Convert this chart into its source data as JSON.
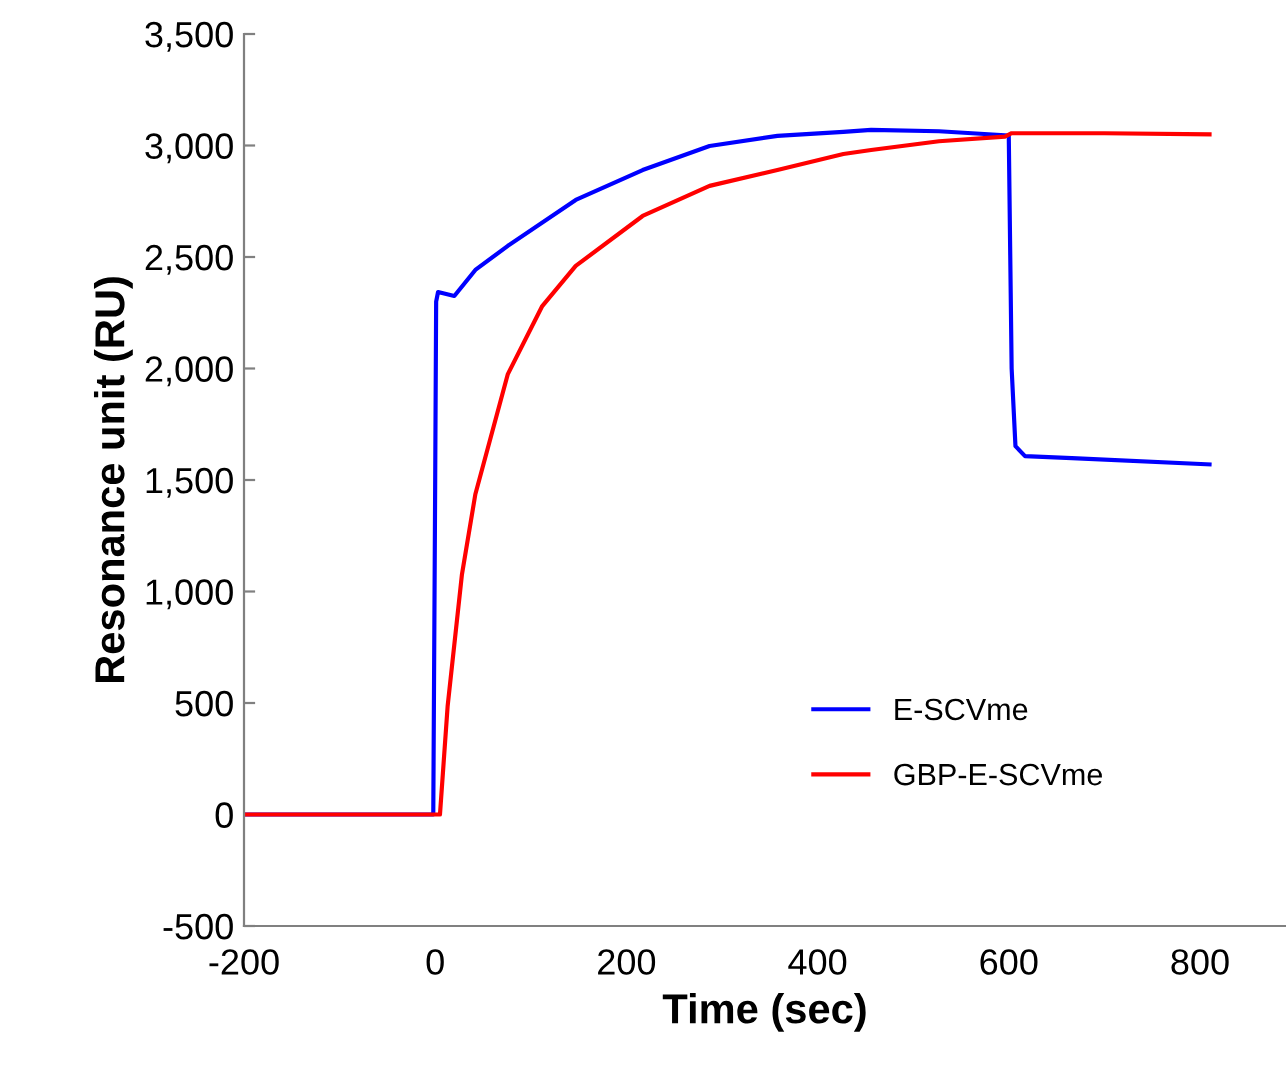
{
  "chart_data": {
    "type": "line",
    "xlabel": "Time (sec)",
    "ylabel": "Resonance unit (RU)",
    "xlim": [
      -200,
      890
    ],
    "xticks": [
      -200,
      0,
      200,
      400,
      600,
      800
    ],
    "ylim": [
      -500,
      3500
    ],
    "yticks": [
      -500,
      0,
      500,
      {
        "value": 1000,
        "label": "1,000"
      },
      {
        "value": 1500,
        "label": "1,500"
      },
      {
        "value": 2000,
        "label": "2,000"
      },
      {
        "value": 2500,
        "label": "2,500"
      },
      {
        "value": 3000,
        "label": "3,000"
      },
      {
        "value": 3500,
        "label": "3,500"
      }
    ],
    "grid": false,
    "legend": "bottom right",
    "marker": "none",
    "line_style": "solid",
    "series": [
      {
        "name": "E-SCVme",
        "color": "#0000ff",
        "x": [
          -200,
          -100,
          -2,
          0,
          1,
          3,
          20,
          42,
          76,
          147,
          217,
          287,
          358,
          427,
          456,
          527,
          596,
          600,
          603,
          607,
          617,
          666,
          810
        ],
        "values": [
          0,
          0,
          0,
          1500,
          2300,
          2343,
          2325,
          2442,
          2550,
          2756,
          2890,
          2998,
          3043,
          3061,
          3070,
          3064,
          3046,
          3045,
          2000,
          1652,
          1607,
          1598,
          1570
        ]
      },
      {
        "name": "GBP-E-SCVme",
        "color": "#ff0000",
        "x": [
          -200,
          -100,
          0,
          5,
          13,
          28,
          42,
          76,
          112,
          147,
          217,
          287,
          358,
          427,
          456,
          527,
          596,
          603,
          700,
          810
        ],
        "values": [
          0,
          0,
          0,
          0,
          485,
          1077,
          1436,
          1975,
          2280,
          2460,
          2684,
          2819,
          2890,
          2962,
          2980,
          3019,
          3040,
          3055,
          3055,
          3050
        ]
      }
    ]
  }
}
